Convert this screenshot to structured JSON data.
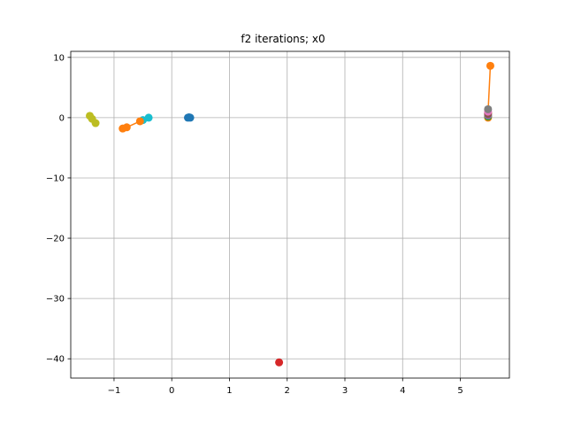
{
  "chart_data": {
    "type": "scatter",
    "title": "f2 iterations; x0",
    "xlabel": "",
    "ylabel": "",
    "xlim": [
      -1.75,
      5.85
    ],
    "ylim": [
      -43.2,
      11.0
    ],
    "grid": true,
    "x_ticks": [
      -1,
      0,
      1,
      2,
      3,
      4,
      5
    ],
    "x_tick_labels": [
      "−1",
      "0",
      "1",
      "2",
      "3",
      "4",
      "5"
    ],
    "y_ticks": [
      -40,
      -30,
      -20,
      -10,
      0,
      10
    ],
    "y_tick_labels": [
      "−40",
      "−30",
      "−20",
      "−10",
      "0",
      "10"
    ],
    "series": [
      {
        "color": "#1f77b4",
        "points": [
          [
            0.28,
            0.0
          ],
          [
            0.3,
            0.05
          ],
          [
            0.32,
            0.0
          ]
        ]
      },
      {
        "color": "#ff7f0e",
        "points": [
          [
            5.52,
            8.6
          ],
          [
            5.48,
            0.8
          ],
          [
            5.48,
            0.0
          ]
        ]
      },
      {
        "color": "#2ca02c",
        "points": [
          [
            5.48,
            0.2
          ]
        ]
      },
      {
        "color": "#d62728",
        "points": [
          [
            1.86,
            -40.6
          ]
        ]
      },
      {
        "color": "#9467bd",
        "points": [
          [
            5.48,
            0.4
          ]
        ]
      },
      {
        "color": "#8c564b",
        "points": [
          [
            5.48,
            0.6
          ]
        ]
      },
      {
        "color": "#e377c2",
        "points": [
          [
            5.48,
            1.0
          ]
        ]
      },
      {
        "color": "#7f7f7f",
        "points": [
          [
            5.48,
            1.4
          ]
        ]
      },
      {
        "color": "#bcbd22",
        "points": [
          [
            -1.42,
            0.3
          ],
          [
            -1.38,
            -0.2
          ],
          [
            -1.32,
            -0.9
          ]
        ]
      },
      {
        "color": "#17becf",
        "points": [
          [
            -0.5,
            -0.4
          ],
          [
            -0.4,
            0.0
          ]
        ]
      },
      {
        "color": "#ff7f0e",
        "points": [
          [
            -0.85,
            -1.8
          ],
          [
            -0.78,
            -1.6
          ],
          [
            -0.55,
            -0.6
          ]
        ]
      }
    ]
  }
}
